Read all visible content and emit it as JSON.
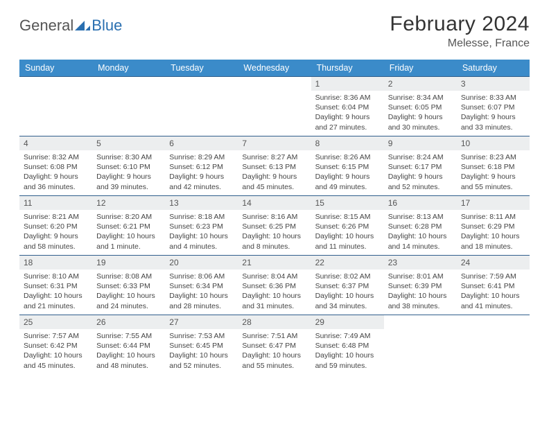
{
  "brand": {
    "word1": "General",
    "word2": "Blue",
    "logo_fill": "#2a6fb0"
  },
  "title": "February 2024",
  "location": "Melesse, France",
  "colors": {
    "header_bg": "#3b8bc9",
    "header_fg": "#ffffff",
    "row_border": "#2f5e8c",
    "daynum_bg": "#eceeef",
    "text": "#444444"
  },
  "weekdays": [
    "Sunday",
    "Monday",
    "Tuesday",
    "Wednesday",
    "Thursday",
    "Friday",
    "Saturday"
  ],
  "weeks": [
    [
      null,
      null,
      null,
      null,
      {
        "n": "1",
        "sr": "8:36 AM",
        "ss": "6:04 PM",
        "dl": "9 hours and 27 minutes."
      },
      {
        "n": "2",
        "sr": "8:34 AM",
        "ss": "6:05 PM",
        "dl": "9 hours and 30 minutes."
      },
      {
        "n": "3",
        "sr": "8:33 AM",
        "ss": "6:07 PM",
        "dl": "9 hours and 33 minutes."
      }
    ],
    [
      {
        "n": "4",
        "sr": "8:32 AM",
        "ss": "6:08 PM",
        "dl": "9 hours and 36 minutes."
      },
      {
        "n": "5",
        "sr": "8:30 AM",
        "ss": "6:10 PM",
        "dl": "9 hours and 39 minutes."
      },
      {
        "n": "6",
        "sr": "8:29 AM",
        "ss": "6:12 PM",
        "dl": "9 hours and 42 minutes."
      },
      {
        "n": "7",
        "sr": "8:27 AM",
        "ss": "6:13 PM",
        "dl": "9 hours and 45 minutes."
      },
      {
        "n": "8",
        "sr": "8:26 AM",
        "ss": "6:15 PM",
        "dl": "9 hours and 49 minutes."
      },
      {
        "n": "9",
        "sr": "8:24 AM",
        "ss": "6:17 PM",
        "dl": "9 hours and 52 minutes."
      },
      {
        "n": "10",
        "sr": "8:23 AM",
        "ss": "6:18 PM",
        "dl": "9 hours and 55 minutes."
      }
    ],
    [
      {
        "n": "11",
        "sr": "8:21 AM",
        "ss": "6:20 PM",
        "dl": "9 hours and 58 minutes."
      },
      {
        "n": "12",
        "sr": "8:20 AM",
        "ss": "6:21 PM",
        "dl": "10 hours and 1 minute."
      },
      {
        "n": "13",
        "sr": "8:18 AM",
        "ss": "6:23 PM",
        "dl": "10 hours and 4 minutes."
      },
      {
        "n": "14",
        "sr": "8:16 AM",
        "ss": "6:25 PM",
        "dl": "10 hours and 8 minutes."
      },
      {
        "n": "15",
        "sr": "8:15 AM",
        "ss": "6:26 PM",
        "dl": "10 hours and 11 minutes."
      },
      {
        "n": "16",
        "sr": "8:13 AM",
        "ss": "6:28 PM",
        "dl": "10 hours and 14 minutes."
      },
      {
        "n": "17",
        "sr": "8:11 AM",
        "ss": "6:29 PM",
        "dl": "10 hours and 18 minutes."
      }
    ],
    [
      {
        "n": "18",
        "sr": "8:10 AM",
        "ss": "6:31 PM",
        "dl": "10 hours and 21 minutes."
      },
      {
        "n": "19",
        "sr": "8:08 AM",
        "ss": "6:33 PM",
        "dl": "10 hours and 24 minutes."
      },
      {
        "n": "20",
        "sr": "8:06 AM",
        "ss": "6:34 PM",
        "dl": "10 hours and 28 minutes."
      },
      {
        "n": "21",
        "sr": "8:04 AM",
        "ss": "6:36 PM",
        "dl": "10 hours and 31 minutes."
      },
      {
        "n": "22",
        "sr": "8:02 AM",
        "ss": "6:37 PM",
        "dl": "10 hours and 34 minutes."
      },
      {
        "n": "23",
        "sr": "8:01 AM",
        "ss": "6:39 PM",
        "dl": "10 hours and 38 minutes."
      },
      {
        "n": "24",
        "sr": "7:59 AM",
        "ss": "6:41 PM",
        "dl": "10 hours and 41 minutes."
      }
    ],
    [
      {
        "n": "25",
        "sr": "7:57 AM",
        "ss": "6:42 PM",
        "dl": "10 hours and 45 minutes."
      },
      {
        "n": "26",
        "sr": "7:55 AM",
        "ss": "6:44 PM",
        "dl": "10 hours and 48 minutes."
      },
      {
        "n": "27",
        "sr": "7:53 AM",
        "ss": "6:45 PM",
        "dl": "10 hours and 52 minutes."
      },
      {
        "n": "28",
        "sr": "7:51 AM",
        "ss": "6:47 PM",
        "dl": "10 hours and 55 minutes."
      },
      {
        "n": "29",
        "sr": "7:49 AM",
        "ss": "6:48 PM",
        "dl": "10 hours and 59 minutes."
      },
      null,
      null
    ]
  ],
  "labels": {
    "sunrise": "Sunrise: ",
    "sunset": "Sunset: ",
    "daylight": "Daylight: "
  }
}
